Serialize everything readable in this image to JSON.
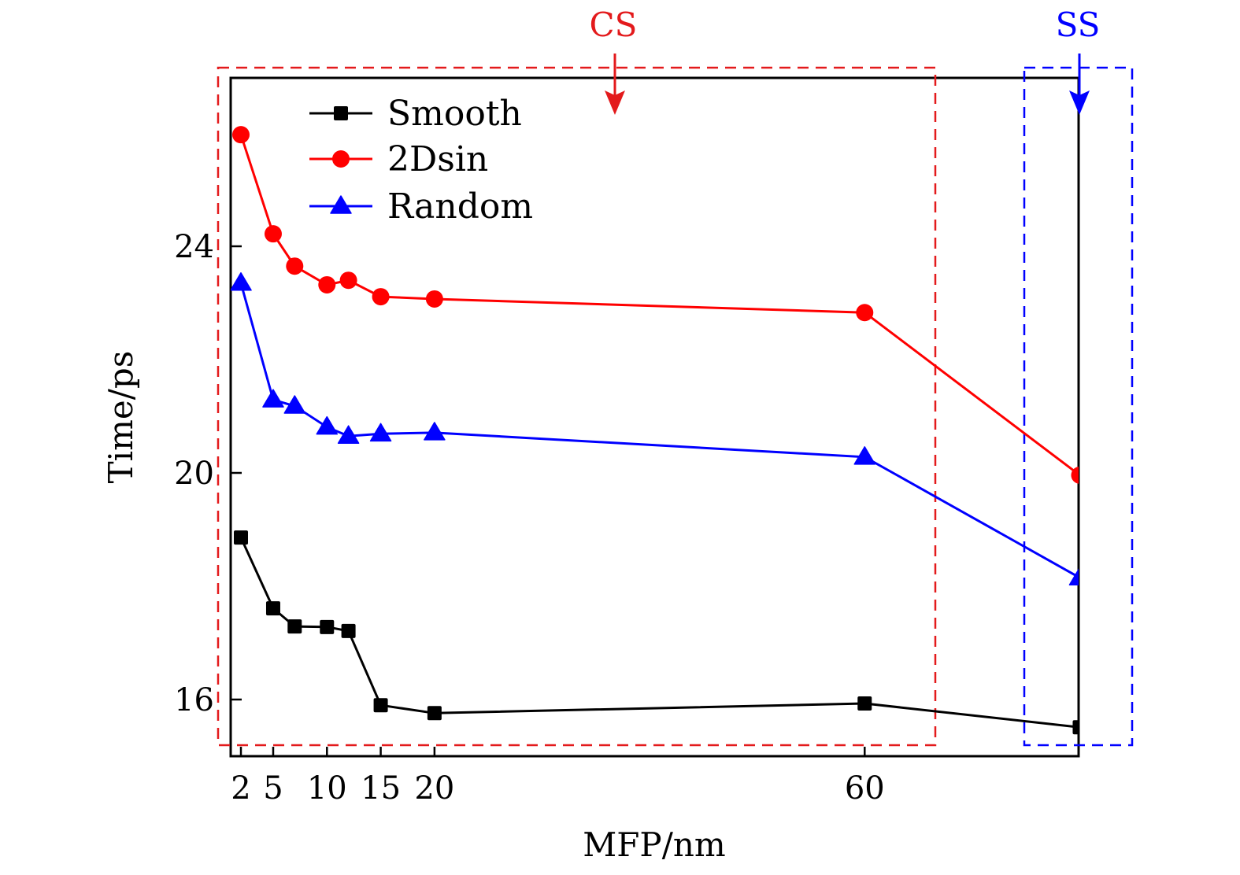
{
  "chart_data": {
    "type": "line",
    "title": "",
    "xlabel": "MFP/nm",
    "ylabel": "Time/ps",
    "xlim": [
      1,
      80
    ],
    "ylim": [
      15,
      27
    ],
    "grid": false,
    "legend_position": "top-left",
    "x_ticks": [
      2,
      5,
      10,
      15,
      20,
      60
    ],
    "x_tick_labels": [
      "2",
      "5",
      "10",
      "15",
      "20",
      "60"
    ],
    "y_ticks": [
      16,
      20,
      24
    ],
    "y_tick_labels": [
      "16",
      "20",
      "24"
    ],
    "x": [
      2,
      5,
      7,
      10,
      12,
      15,
      20,
      60,
      80
    ],
    "series": [
      {
        "name": "Smooth",
        "color": "#000000",
        "marker": "square",
        "values": [
          18.86,
          17.61,
          17.29,
          17.28,
          17.21,
          15.9,
          15.76,
          15.93,
          15.51
        ]
      },
      {
        "name": "2Dsin",
        "color": "#ff0000",
        "marker": "circle",
        "values": [
          25.97,
          24.22,
          23.65,
          23.32,
          23.4,
          23.11,
          23.07,
          22.83,
          19.96
        ]
      },
      {
        "name": "Random",
        "color": "#0000ff",
        "marker": "triangle",
        "values": [
          23.35,
          21.29,
          21.18,
          20.81,
          20.65,
          20.69,
          20.71,
          20.28,
          18.15
        ]
      }
    ],
    "annotations": [
      {
        "label": "CS",
        "color": "#e31a1c",
        "x_range": [
          0.8,
          68
        ],
        "arrow_x": 36
      },
      {
        "label": "SS",
        "color": "#0000ff",
        "x_range": [
          72,
          85
        ],
        "arrow_x": 80
      }
    ]
  }
}
